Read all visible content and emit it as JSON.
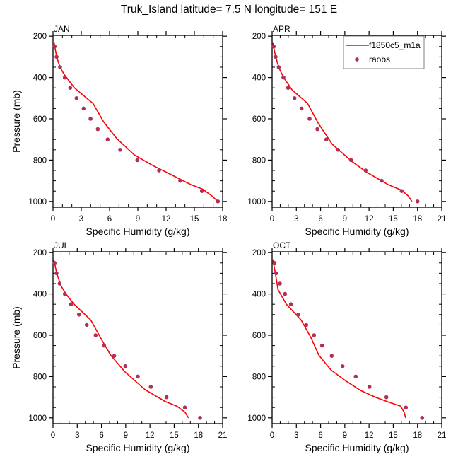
{
  "title": "Truk_Island  latitude= 7.5 N longitude= 151 E",
  "colors": {
    "model_line": "#ff0000",
    "obs_marker": "#b0305c",
    "axis": "#000000",
    "legend_border": "#808080"
  },
  "legend": {
    "entries": [
      {
        "label": "f1850c5_m1a",
        "type": "line"
      },
      {
        "label": "raobs",
        "type": "marker"
      }
    ]
  },
  "chart_data": [
    {
      "type": "line",
      "title": "JAN",
      "xlabel": "Specific Humidity (g/kg)",
      "ylabel": "Pressure (mb)",
      "xlim": [
        0,
        18
      ],
      "ylim": [
        1025,
        200
      ],
      "y_inverted": true,
      "xticks": [
        0,
        3,
        6,
        9,
        12,
        15,
        18
      ],
      "yticks": [
        200,
        400,
        600,
        800,
        1000
      ],
      "legend": "none",
      "series": [
        {
          "name": "f1850c5_m1a",
          "kind": "line",
          "x": [
            0.13,
            0.38,
            0.75,
            1.2,
            2.25,
            4.25,
            5.38,
            6.75,
            8.63,
            10.63,
            12.6,
            14.6,
            15.9,
            16.9,
            17.5
          ],
          "y": [
            233,
            300,
            351,
            386,
            449,
            526,
            615,
            695,
            775,
            827,
            872,
            918,
            941,
            975,
            1000
          ]
        },
        {
          "name": "raobs",
          "kind": "marker",
          "x": [
            0.17,
            0.38,
            0.75,
            1.25,
            1.82,
            2.5,
            3.25,
            3.98,
            4.75,
            5.8,
            7.13,
            8.95,
            11.25,
            13.5,
            15.8,
            17.5
          ],
          "y": [
            250,
            300,
            350,
            400,
            450,
            500,
            550,
            600,
            650,
            700,
            750,
            800,
            850,
            900,
            950,
            1000
          ]
        }
      ]
    },
    {
      "type": "line",
      "title": "APR",
      "xlabel": "Specific Humidity (g/kg)",
      "ylabel": "",
      "xlim": [
        0,
        21
      ],
      "ylim": [
        1025,
        200
      ],
      "y_inverted": true,
      "xticks": [
        0,
        3,
        6,
        9,
        12,
        15,
        18,
        21
      ],
      "yticks": [
        200,
        400,
        600,
        800,
        1000
      ],
      "legend": "top-right",
      "series": [
        {
          "name": "f1850c5_m1a",
          "kind": "line",
          "x": [
            0.09,
            0.44,
            0.88,
            1.46,
            2.48,
            4.38,
            5.69,
            7.44,
            9.77,
            11.67,
            14.29,
            16.04,
            16.9,
            17.3
          ],
          "y": [
            233,
            300,
            357,
            402,
            460,
            525,
            620,
            723,
            803,
            858,
            917,
            946,
            975,
            1000
          ]
        },
        {
          "name": "raobs",
          "kind": "marker",
          "x": [
            0.2,
            0.44,
            0.82,
            1.4,
            1.98,
            2.77,
            3.65,
            4.64,
            5.6,
            6.71,
            8.16,
            9.77,
            11.58,
            13.56,
            16.04,
            18.0
          ],
          "y": [
            250,
            300,
            350,
            400,
            450,
            500,
            550,
            600,
            650,
            700,
            750,
            800,
            850,
            900,
            950,
            1000
          ]
        }
      ]
    },
    {
      "type": "line",
      "title": "JUL",
      "xlabel": "Specific Humidity (g/kg)",
      "ylabel": "Pressure (mb)",
      "xlim": [
        0,
        21
      ],
      "ylim": [
        1025,
        200
      ],
      "y_inverted": true,
      "xticks": [
        0,
        3,
        6,
        9,
        12,
        15,
        18,
        21
      ],
      "yticks": [
        200,
        400,
        600,
        800,
        1000
      ],
      "legend": "none",
      "series": [
        {
          "name": "f1850c5_m1a",
          "kind": "line",
          "x": [
            0.09,
            0.44,
            0.96,
            1.6,
            2.63,
            4.67,
            6.13,
            7.15,
            8.9,
            11.38,
            13.85,
            15.31,
            16.33,
            16.77
          ],
          "y": [
            233,
            296,
            359,
            400,
            451,
            526,
            629,
            697,
            777,
            863,
            920,
            943,
            972,
            1000
          ]
        },
        {
          "name": "raobs",
          "kind": "marker",
          "x": [
            0.2,
            0.44,
            0.82,
            1.46,
            2.25,
            3.21,
            4.17,
            5.28,
            6.33,
            7.58,
            8.95,
            10.5,
            12.1,
            14.06,
            16.33,
            18.2
          ],
          "y": [
            250,
            300,
            350,
            400,
            450,
            500,
            550,
            600,
            650,
            700,
            750,
            800,
            850,
            900,
            950,
            1000
          ]
        }
      ]
    },
    {
      "type": "line",
      "title": "OCT",
      "xlabel": "Specific Humidity (g/kg)",
      "ylabel": "",
      "xlim": [
        0,
        21
      ],
      "ylim": [
        1025,
        200
      ],
      "y_inverted": true,
      "xticks": [
        0,
        3,
        6,
        9,
        12,
        15,
        18,
        21
      ],
      "yticks": [
        200,
        400,
        600,
        800,
        1000
      ],
      "legend": "none",
      "series": [
        {
          "name": "f1850c5_m1a",
          "kind": "line",
          "x": [
            0.09,
            0.44,
            0.73,
            1.75,
            3.59,
            4.81,
            5.78,
            7.29,
            9.19,
            10.94,
            12.84,
            14.44,
            15.9,
            16.33,
            16.54
          ],
          "y": [
            233,
            308,
            379,
            449,
            526,
            612,
            697,
            768,
            823,
            867,
            901,
            924,
            943,
            972,
            1000
          ]
        },
        {
          "name": "raobs",
          "kind": "marker",
          "x": [
            0.29,
            0.5,
            0.96,
            1.6,
            2.33,
            3.24,
            4.23,
            5.19,
            6.19,
            7.38,
            8.72,
            10.35,
            12.05,
            14.15,
            16.56,
            18.58
          ],
          "y": [
            250,
            300,
            350,
            400,
            450,
            500,
            550,
            600,
            650,
            700,
            750,
            800,
            850,
            900,
            950,
            1000
          ]
        }
      ]
    }
  ]
}
